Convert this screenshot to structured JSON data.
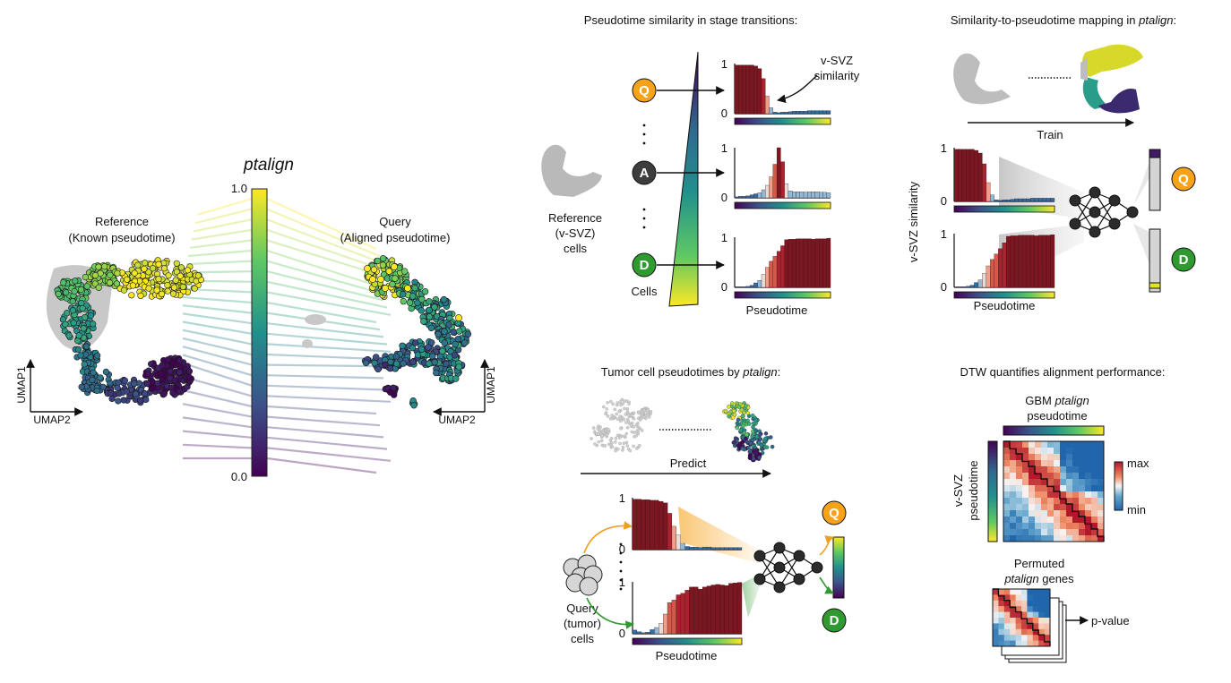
{
  "ptalign_panel": {
    "title": "ptalign",
    "scale_max": "1.0",
    "scale_min": "0.0",
    "reference_label": "Reference",
    "reference_sub": "(Known pseudotime)",
    "query_label": "Query",
    "query_sub": "(Aligned pseudotime)",
    "umap1_left": "UMAP1",
    "umap2_left": "UMAP2",
    "umap1_right": "UMAP1",
    "umap2_right": "UMAP2"
  },
  "stage_panel": {
    "title": "Pseudotime similarity in stage transitions:",
    "reference_lines": [
      "Reference",
      "(v-SVZ)",
      "cells"
    ],
    "cells_label": "Cells",
    "nodes": [
      "Q",
      "A",
      "D"
    ],
    "annotation_lines": [
      "v-SVZ",
      "similarity"
    ],
    "axis_one": "1",
    "axis_zero": "0",
    "x_axis_label": "Pseudotime"
  },
  "mapping_panel": {
    "title_plain": "Similarity-to-pseudotime mapping in ",
    "title_italic": "ptalign",
    "title_end": ":",
    "train_label": "Train",
    "y_axis_label": "v-SVZ similarity",
    "x_axis_label": "Pseudotime",
    "axis_one": "1",
    "axis_zero": "0",
    "outputs": [
      "Q",
      "D"
    ]
  },
  "tumor_panel": {
    "title_plain": "Tumor cell pseudotimes by ",
    "title_italic": "ptalign",
    "title_end": ":",
    "predict_label": "Predict",
    "query_lines": [
      "Query",
      "(tumor)",
      "cells"
    ],
    "x_axis_label": "Pseudotime",
    "axis_one": "1",
    "axis_zero": "0",
    "outputs": [
      "Q",
      "D"
    ]
  },
  "dtw_panel": {
    "title": "DTW quantifies alignment performance:",
    "top_label_plain": "GBM ",
    "top_label_italic": "ptalign",
    "top_label_line2": "pseudotime",
    "left_label_line1": "v-SVZ",
    "left_label_line2": "pseudotime",
    "max_label": "max",
    "min_label": "min",
    "permuted_line1": "Permuted",
    "permuted_italic": "ptalign",
    "permuted_line2_end": " genes",
    "pvalue_label": "p-value"
  },
  "colors": {
    "q_node": "#f7a219",
    "a_node": "#3d3d3d",
    "d_node": "#2f9a2f",
    "bar_dark": "#7b1720",
    "bar_blue": "#2f6fa6",
    "grey_cells": "#b8b8b8"
  },
  "chart_data": [
    {
      "type": "bar",
      "name_hint": "Q",
      "values": [
        0.97,
        0.97,
        0.97,
        0.97,
        0.97,
        0.95,
        0.9,
        0.7,
        0.35,
        0.12,
        0.03,
        0.02,
        0.03,
        0.03,
        0.04,
        0.05,
        0.05,
        0.05,
        0.05,
        0.06,
        0.06,
        0.06,
        0.06,
        0.06,
        0.06
      ]
    },
    {
      "type": "bar",
      "name_hint": "A",
      "values": [
        0.02,
        0.03,
        0.03,
        0.04,
        0.06,
        0.08,
        0.1,
        0.16,
        0.25,
        0.42,
        0.67,
        1.0,
        0.72,
        0.28,
        0.14,
        0.12,
        0.12,
        0.12,
        0.11,
        0.12,
        0.12,
        0.12,
        0.11,
        0.11,
        0.1
      ]
    },
    {
      "type": "bar",
      "name_hint": "D",
      "values": [
        0.01,
        0.01,
        0.01,
        0.02,
        0.04,
        0.09,
        0.14,
        0.26,
        0.4,
        0.52,
        0.62,
        0.72,
        0.83,
        0.95,
        0.96,
        0.96,
        0.97,
        0.97,
        0.97,
        0.97,
        0.96,
        0.97,
        0.97,
        0.97,
        0.98
      ]
    },
    {
      "type": "bar",
      "name_hint": "tumor-Q",
      "values": [
        0.97,
        0.97,
        0.96,
        0.96,
        0.95,
        0.95,
        0.93,
        0.9,
        0.7,
        0.45,
        0.28,
        0.12,
        0.06,
        0.05,
        0.05,
        0.04,
        0.05,
        0.05,
        0.04,
        0.04,
        0.04,
        0.04,
        0.04,
        0.04,
        0.04
      ]
    },
    {
      "type": "bar",
      "name_hint": "tumor-D",
      "values": [
        0.07,
        0.04,
        0.02,
        0.03,
        0.08,
        0.12,
        0.2,
        0.38,
        0.6,
        0.65,
        0.75,
        0.78,
        0.84,
        0.9,
        0.9,
        0.86,
        0.9,
        0.92,
        0.94,
        0.95,
        0.94,
        0.93,
        0.97,
        0.98,
        0.99
      ]
    }
  ]
}
